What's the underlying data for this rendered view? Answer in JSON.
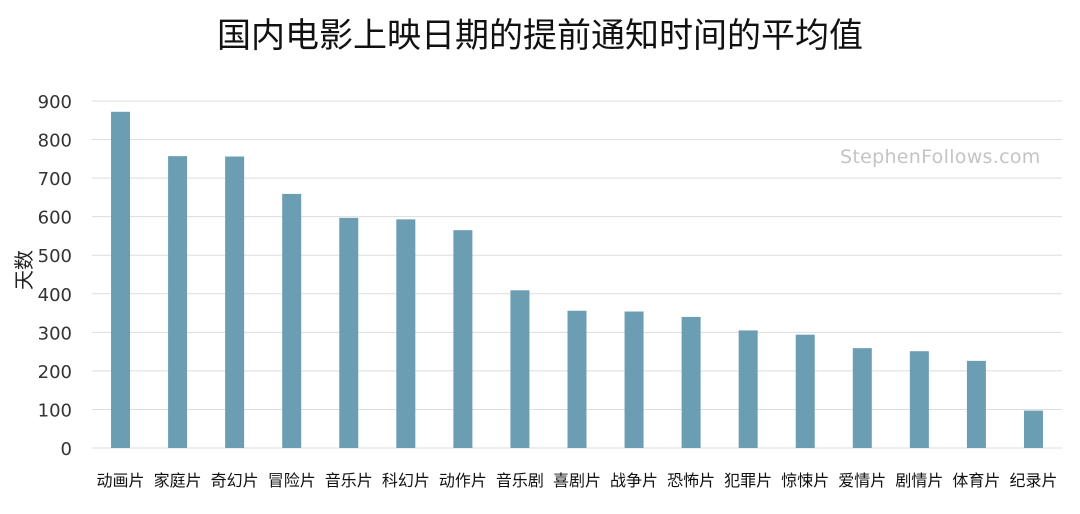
{
  "chart_data": {
    "type": "bar",
    "title": "国内电影上映日期的提前通知时间的平均值",
    "ylabel": "天数",
    "xlabel": "",
    "ylim": [
      0,
      900
    ],
    "yticks": [
      0,
      100,
      200,
      300,
      400,
      500,
      600,
      700,
      800,
      900
    ],
    "grid": true,
    "categories": [
      "动画片",
      "家庭片",
      "奇幻片",
      "冒险片",
      "音乐片",
      "科幻片",
      "动作片",
      "音乐剧",
      "喜剧片",
      "战争片",
      "恐怖片",
      "犯罪片",
      "惊悚片",
      "爱情片",
      "剧情片",
      "体育片",
      "纪录片"
    ],
    "values": [
      872,
      757,
      756,
      659,
      597,
      593,
      565,
      409,
      356,
      354,
      340,
      305,
      294,
      259,
      251,
      226,
      97
    ],
    "bar_color": "#6b9db3",
    "watermark": "StephenFollows.com"
  }
}
